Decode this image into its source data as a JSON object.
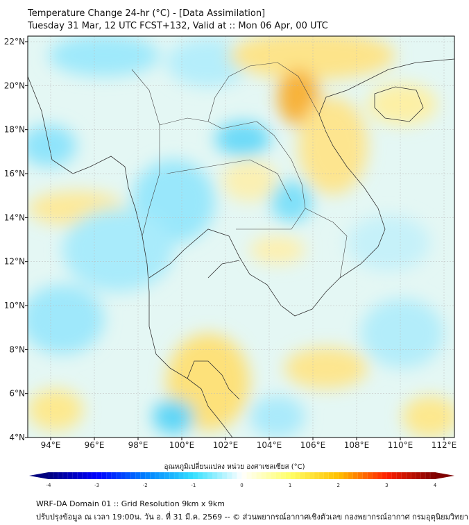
{
  "title": {
    "line1": "Temperature Change 24-hr (°C) - [Data Assimilation]",
    "line2": "Tuesday 31 Mar, 12 UTC FCST+132, Valid at :: Mon 06 Apr, 00 UTC"
  },
  "map": {
    "lon_labels": [
      "94°E",
      "96°E",
      "98°E",
      "100°E",
      "102°E",
      "104°E",
      "106°E",
      "108°E",
      "110°E",
      "112°E"
    ],
    "lat_labels": [
      "22°N",
      "20°N",
      "18°N",
      "16°N",
      "14°N",
      "12°N",
      "10°N",
      "8°N",
      "6°N",
      "4°N"
    ],
    "lon_range": [
      93,
      112.5
    ],
    "lat_range": [
      4,
      22.2
    ]
  },
  "colorbar": {
    "label": "อุณหภูมิเปลี่ยนแปลง หน่วย องศาเซลเซียส (°C)",
    "ticks": [
      "-4",
      "-3",
      "-2",
      "-1",
      "0",
      "1",
      "2",
      "3",
      "4"
    ],
    "colors": [
      "#00007f",
      "#0000ff",
      "#0080ff",
      "#33e0ff",
      "#ffffff",
      "#ffff66",
      "#ffc000",
      "#ff2000",
      "#7f0000"
    ]
  },
  "footer": {
    "line1": "WRF-DA Domain 01 :: Grid Resolution 9km x 9km",
    "line2": "ปรับปรุงข้อมูล ณ เวลา 19:00น. วัน อ. ที่ 31 มี.ค. 2569 -- © ส่วนพยากรณ์อากาศเชิงตัวเลข กองพยากรณ์อากาศ กรมอุตุนิยมวิทยา"
  }
}
